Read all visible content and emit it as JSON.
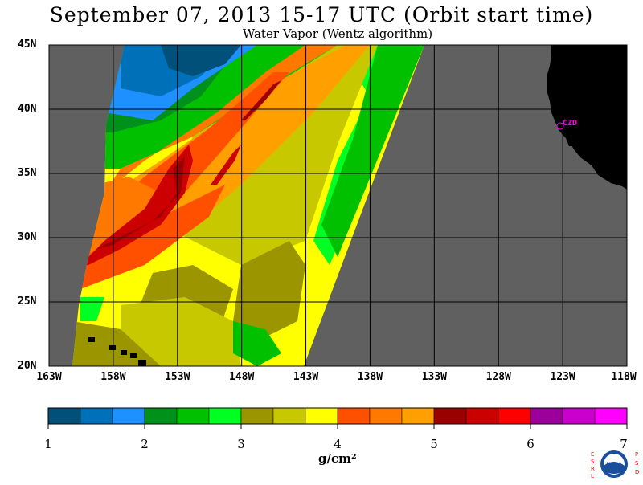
{
  "title": "September 07, 2013  15-17 UTC  (Orbit start time)",
  "subtitle": "Water Vapor (Wentz algorithm)",
  "map": {
    "lat_labels": [
      "45N",
      "40N",
      "35N",
      "30N",
      "25N",
      "20N"
    ],
    "lon_labels": [
      "163W",
      "158W",
      "153W",
      "148W",
      "143W",
      "138W",
      "133W",
      "128W",
      "123W",
      "118W"
    ],
    "station_label": "CZD",
    "colors": {
      "no_data": "#606060",
      "land": "#000000",
      "grid": "#000000",
      "station": "#ff00ff"
    }
  },
  "colorbar": {
    "ticks": [
      "1",
      "2",
      "3",
      "4",
      "5",
      "6",
      "7"
    ],
    "unit": "g/cm²",
    "colors": [
      "#00507a",
      "#0070b8",
      "#1e90ff",
      "#00901c",
      "#00c000",
      "#00ff22",
      "#9b9600",
      "#c8c800",
      "#ffff00",
      "#ff5000",
      "#ff7800",
      "#ffa000",
      "#9b0000",
      "#cc0000",
      "#ff0000",
      "#9b009b",
      "#cc00cc",
      "#ff00ff"
    ]
  },
  "logo": {
    "left_letters": "ESRL",
    "right_letters": "PSD",
    "center_text": "NOAA"
  }
}
